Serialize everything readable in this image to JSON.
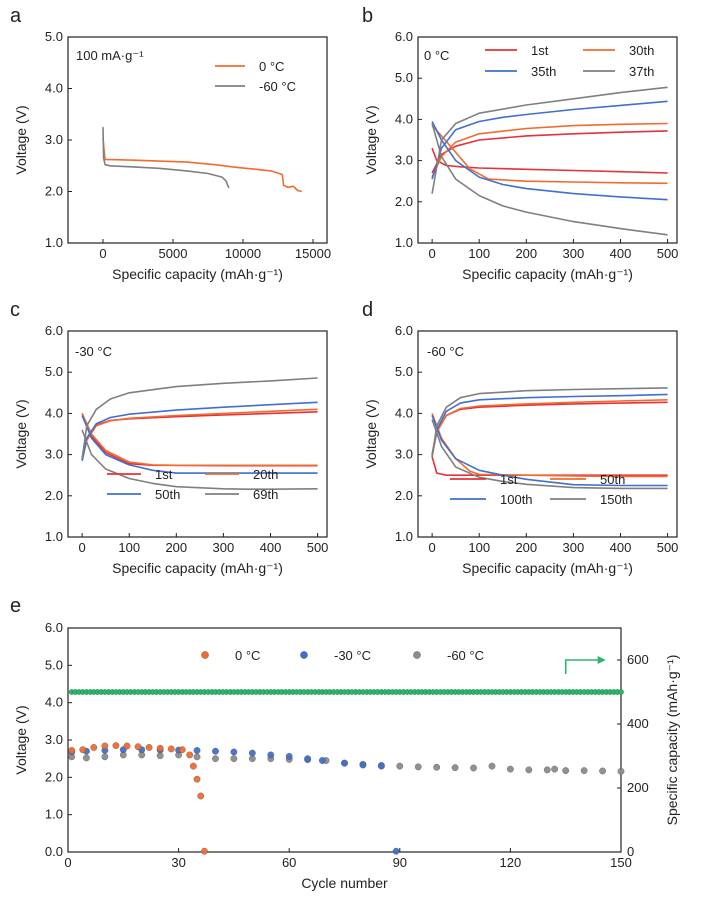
{
  "chart_data": [
    {
      "panel": "a",
      "type": "line",
      "annotation": "100 mA·g⁻¹",
      "xlabel": "Specific capacity (mAh·g⁻¹)",
      "ylabel": "Voltage (V)",
      "xlim": [
        -2500,
        16000
      ],
      "ylim": [
        1.0,
        5.0
      ],
      "xticks": [
        0,
        5000,
        10000,
        15000
      ],
      "yticks": [
        1.0,
        2.0,
        3.0,
        4.0,
        5.0
      ],
      "legend_position": "top-right",
      "series": [
        {
          "name": "0 °C",
          "color": "#f26b2e",
          "x": [
            0,
            60,
            150,
            600,
            2000,
            4000,
            6000,
            8000,
            9500,
            11000,
            12000,
            12800,
            12900,
            13200,
            13600,
            13900,
            14200
          ],
          "y": [
            3.05,
            2.85,
            2.62,
            2.62,
            2.61,
            2.59,
            2.57,
            2.52,
            2.47,
            2.43,
            2.4,
            2.33,
            2.12,
            2.08,
            2.1,
            2.02,
            2.0
          ]
        },
        {
          "name": "-60 °C",
          "color": "#7f7f7f",
          "x": [
            0,
            40,
            150,
            500,
            2000,
            4000,
            6000,
            7500,
            8500,
            8800,
            8900,
            9000
          ],
          "y": [
            3.25,
            2.65,
            2.52,
            2.5,
            2.48,
            2.45,
            2.4,
            2.35,
            2.28,
            2.2,
            2.12,
            2.07
          ]
        }
      ]
    },
    {
      "panel": "b",
      "type": "line",
      "annotation": "0 °C",
      "xlabel": "Specific capacity (mAh·g⁻¹)",
      "ylabel": "Voltage (V)",
      "xlim": [
        -30,
        520
      ],
      "ylim": [
        1.0,
        6.0
      ],
      "xticks": [
        0,
        100,
        200,
        300,
        400,
        500
      ],
      "yticks": [
        1.0,
        2.0,
        3.0,
        4.0,
        5.0,
        6.0
      ],
      "legend_position": "top-right",
      "series": [
        {
          "name": "1st",
          "color": "#e8303a",
          "charge": {
            "x": [
              0,
              20,
              50,
              100,
              200,
              300,
              400,
              500
            ],
            "y": [
              2.7,
              3.15,
              3.35,
              3.5,
              3.6,
              3.65,
              3.69,
              3.72
            ]
          },
          "discharge": {
            "x": [
              0,
              10,
              30,
              60,
              100,
              200,
              300,
              400,
              500
            ],
            "y": [
              3.3,
              3.0,
              2.88,
              2.85,
              2.82,
              2.79,
              2.76,
              2.73,
              2.7
            ]
          }
        },
        {
          "name": "30th",
          "color": "#f26b2e",
          "charge": {
            "x": [
              0,
              20,
              50,
              100,
              200,
              300,
              400,
              500
            ],
            "y": [
              2.6,
              3.1,
              3.45,
              3.65,
              3.78,
              3.85,
              3.88,
              3.9
            ]
          },
          "discharge": {
            "x": [
              0,
              20,
              50,
              80,
              120,
              200,
              300,
              400,
              500
            ],
            "y": [
              3.85,
              3.6,
              3.2,
              2.8,
              2.55,
              2.5,
              2.48,
              2.46,
              2.45
            ]
          }
        },
        {
          "name": "35th",
          "color": "#3f6fd1",
          "charge": {
            "x": [
              0,
              20,
              50,
              100,
              150,
              200,
              300,
              400,
              500
            ],
            "y": [
              2.55,
              3.3,
              3.75,
              3.95,
              4.05,
              4.12,
              4.24,
              4.34,
              4.44
            ]
          },
          "discharge": {
            "x": [
              0,
              20,
              50,
              100,
              150,
              200,
              300,
              400,
              500
            ],
            "y": [
              3.95,
              3.5,
              3.0,
              2.6,
              2.42,
              2.32,
              2.2,
              2.12,
              2.05
            ]
          }
        },
        {
          "name": "37th",
          "color": "#7f7f7f",
          "charge": {
            "x": [
              0,
              20,
              50,
              100,
              200,
              300,
              400,
              500
            ],
            "y": [
              2.2,
              3.5,
              3.9,
              4.15,
              4.35,
              4.5,
              4.65,
              4.78
            ]
          },
          "discharge": {
            "x": [
              0,
              20,
              50,
              100,
              150,
              200,
              300,
              400,
              500
            ],
            "y": [
              3.9,
              3.1,
              2.55,
              2.15,
              1.9,
              1.75,
              1.52,
              1.35,
              1.2
            ]
          }
        }
      ]
    },
    {
      "panel": "c",
      "type": "line",
      "annotation": "-30 °C",
      "xlabel": "Specific capacity (mAh·g⁻¹)",
      "ylabel": "Voltage (V)",
      "xlim": [
        -30,
        520
      ],
      "ylim": [
        1.0,
        6.0
      ],
      "xticks": [
        0,
        100,
        200,
        300,
        400,
        500
      ],
      "yticks": [
        1.0,
        2.0,
        3.0,
        4.0,
        5.0,
        6.0
      ],
      "legend_position": "bottom-right",
      "series": [
        {
          "name": "1st",
          "color": "#e8303a",
          "charge": {
            "x": [
              0,
              10,
              30,
              60,
              100,
              200,
              300,
              400,
              500
            ],
            "y": [
              2.9,
              3.4,
              3.72,
              3.83,
              3.87,
              3.92,
              3.96,
              4.0,
              4.04
            ]
          },
          "discharge": {
            "x": [
              0,
              20,
              50,
              100,
              150,
              200,
              300,
              400,
              500
            ],
            "y": [
              4.0,
              3.45,
              3.05,
              2.78,
              2.74,
              2.74,
              2.73,
              2.73,
              2.73
            ]
          }
        },
        {
          "name": "20th",
          "color": "#f26b2e",
          "charge": {
            "x": [
              0,
              10,
              30,
              60,
              100,
              200,
              300,
              400,
              500
            ],
            "y": [
              2.85,
              3.35,
              3.7,
              3.82,
              3.88,
              3.95,
              4.0,
              4.05,
              4.1
            ]
          },
          "discharge": {
            "x": [
              0,
              20,
              50,
              100,
              150,
              200,
              300,
              400,
              500
            ],
            "y": [
              4.0,
              3.5,
              3.1,
              2.82,
              2.75,
              2.74,
              2.74,
              2.74,
              2.74
            ]
          }
        },
        {
          "name": "50th",
          "color": "#3f6fd1",
          "charge": {
            "x": [
              0,
              10,
              30,
              60,
              100,
              200,
              300,
              400,
              500
            ],
            "y": [
              2.85,
              3.4,
              3.75,
              3.9,
              3.98,
              4.08,
              4.15,
              4.21,
              4.27
            ]
          },
          "discharge": {
            "x": [
              0,
              20,
              50,
              100,
              150,
              200,
              300,
              400,
              500
            ],
            "y": [
              3.95,
              3.4,
              3.0,
              2.75,
              2.62,
              2.55,
              2.55,
              2.55,
              2.55
            ]
          }
        },
        {
          "name": "69th",
          "color": "#7f7f7f",
          "charge": {
            "x": [
              0,
              10,
              30,
              60,
              100,
              200,
              300,
              400,
              500
            ],
            "y": [
              2.9,
              3.7,
              4.1,
              4.35,
              4.5,
              4.65,
              4.73,
              4.79,
              4.86
            ]
          },
          "discharge": {
            "x": [
              0,
              20,
              50,
              100,
              150,
              200,
              300,
              350,
              400,
              500
            ],
            "y": [
              3.6,
              3.0,
              2.65,
              2.42,
              2.3,
              2.22,
              2.17,
              2.16,
              2.16,
              2.17
            ]
          }
        }
      ]
    },
    {
      "panel": "d",
      "type": "line",
      "annotation": "-60 °C",
      "xlabel": "Specific capacity (mAh·g⁻¹)",
      "ylabel": "Voltage (V)",
      "xlim": [
        -30,
        520
      ],
      "ylim": [
        1.0,
        6.0
      ],
      "xticks": [
        0,
        100,
        200,
        300,
        400,
        500
      ],
      "yticks": [
        1.0,
        2.0,
        3.0,
        4.0,
        5.0,
        6.0
      ],
      "legend_position": "bottom-right",
      "series": [
        {
          "name": "1st",
          "color": "#e8303a",
          "charge": {
            "x": [
              0,
              10,
              30,
              60,
              100,
              200,
              300,
              400,
              500
            ],
            "y": [
              3.0,
              3.55,
              3.95,
              4.1,
              4.15,
              4.2,
              4.23,
              4.25,
              4.27
            ]
          },
          "discharge": {
            "x": [
              0,
              10,
              30,
              60,
              100,
              200,
              300,
              400,
              500
            ],
            "y": [
              2.95,
              2.55,
              2.5,
              2.5,
              2.5,
              2.5,
              2.5,
              2.5,
              2.5
            ]
          }
        },
        {
          "name": "50th",
          "color": "#f26b2e",
          "charge": {
            "x": [
              0,
              10,
              30,
              60,
              100,
              200,
              300,
              400,
              500
            ],
            "y": [
              2.95,
              3.55,
              3.95,
              4.12,
              4.18,
              4.23,
              4.27,
              4.3,
              4.33
            ]
          },
          "discharge": {
            "x": [
              0,
              20,
              50,
              80,
              100,
              200,
              300,
              400,
              500
            ],
            "y": [
              4.0,
              3.4,
              2.9,
              2.6,
              2.52,
              2.5,
              2.48,
              2.47,
              2.47
            ]
          }
        },
        {
          "name": "100th",
          "color": "#3f6fd1",
          "charge": {
            "x": [
              0,
              10,
              30,
              60,
              100,
              200,
              300,
              400,
              500
            ],
            "y": [
              3.0,
              3.6,
              4.05,
              4.25,
              4.33,
              4.38,
              4.41,
              4.43,
              4.46
            ]
          },
          "discharge": {
            "x": [
              0,
              20,
              50,
              100,
              150,
              200,
              300,
              400,
              500
            ],
            "y": [
              3.95,
              3.35,
              2.9,
              2.62,
              2.5,
              2.4,
              2.27,
              2.25,
              2.25
            ]
          }
        },
        {
          "name": "150th",
          "color": "#7f7f7f",
          "charge": {
            "x": [
              0,
              10,
              30,
              60,
              100,
              200,
              300,
              400,
              500
            ],
            "y": [
              2.95,
              3.7,
              4.15,
              4.38,
              4.48,
              4.55,
              4.58,
              4.6,
              4.62
            ]
          },
          "discharge": {
            "x": [
              0,
              20,
              50,
              100,
              150,
              200,
              300,
              400,
              500
            ],
            "y": [
              3.85,
              3.2,
              2.7,
              2.45,
              2.35,
              2.28,
              2.2,
              2.18,
              2.18
            ]
          }
        }
      ]
    },
    {
      "panel": "e",
      "type": "scatter",
      "xlabel": "Cycle number",
      "ylabel": "Voltage (V)",
      "y2label": "Specific capacity (mAh·g⁻¹)",
      "xlim": [
        0,
        150
      ],
      "ylim": [
        0.0,
        6.0
      ],
      "y2lim": [
        0,
        700
      ],
      "xticks": [
        0,
        30,
        60,
        90,
        120,
        150
      ],
      "yticks": [
        0.0,
        1.0,
        2.0,
        3.0,
        4.0,
        5.0,
        6.0
      ],
      "y2ticks": [
        0,
        200,
        400,
        600
      ],
      "legend_position": "top-center",
      "series": [
        {
          "name": "0 °C",
          "color": "#f26b2e",
          "x": [
            1,
            4,
            7,
            10,
            13,
            16,
            19,
            22,
            25,
            28,
            31,
            33,
            34,
            35,
            36,
            37
          ],
          "y": [
            2.72,
            2.74,
            2.8,
            2.84,
            2.85,
            2.84,
            2.82,
            2.8,
            2.78,
            2.76,
            2.74,
            2.6,
            2.3,
            1.95,
            1.5,
            0.02
          ]
        },
        {
          "name": "-30 °C",
          "color": "#3f6fd1",
          "x": [
            1,
            5,
            10,
            15,
            20,
            25,
            30,
            35,
            40,
            45,
            50,
            55,
            60,
            65,
            69,
            75,
            80,
            85,
            89
          ],
          "y": [
            2.68,
            2.7,
            2.72,
            2.74,
            2.74,
            2.73,
            2.73,
            2.72,
            2.7,
            2.68,
            2.65,
            2.6,
            2.56,
            2.5,
            2.45,
            2.38,
            2.33,
            2.3,
            0.02
          ]
        },
        {
          "name": "-60 °C",
          "color": "#8c8c8c",
          "x": [
            1,
            5,
            10,
            15,
            20,
            25,
            30,
            35,
            40,
            45,
            50,
            55,
            60,
            65,
            70,
            75,
            80,
            85,
            90,
            95,
            100,
            105,
            110,
            115,
            120,
            125,
            130,
            132,
            135,
            140,
            145,
            150
          ],
          "y": [
            2.55,
            2.52,
            2.55,
            2.6,
            2.6,
            2.58,
            2.6,
            2.55,
            2.5,
            2.5,
            2.5,
            2.5,
            2.48,
            2.47,
            2.45,
            2.38,
            2.35,
            2.32,
            2.3,
            2.28,
            2.27,
            2.26,
            2.25,
            2.3,
            2.22,
            2.2,
            2.2,
            2.22,
            2.18,
            2.18,
            2.17,
            2.16
          ]
        },
        {
          "name": "Specific capacity",
          "color": "#2db36a",
          "axis": "right",
          "x_range": [
            0,
            150
          ],
          "constant_y2": 500
        }
      ]
    }
  ],
  "panel_letters": {
    "a": "a",
    "b": "b",
    "c": "c",
    "d": "d",
    "e": "e"
  }
}
